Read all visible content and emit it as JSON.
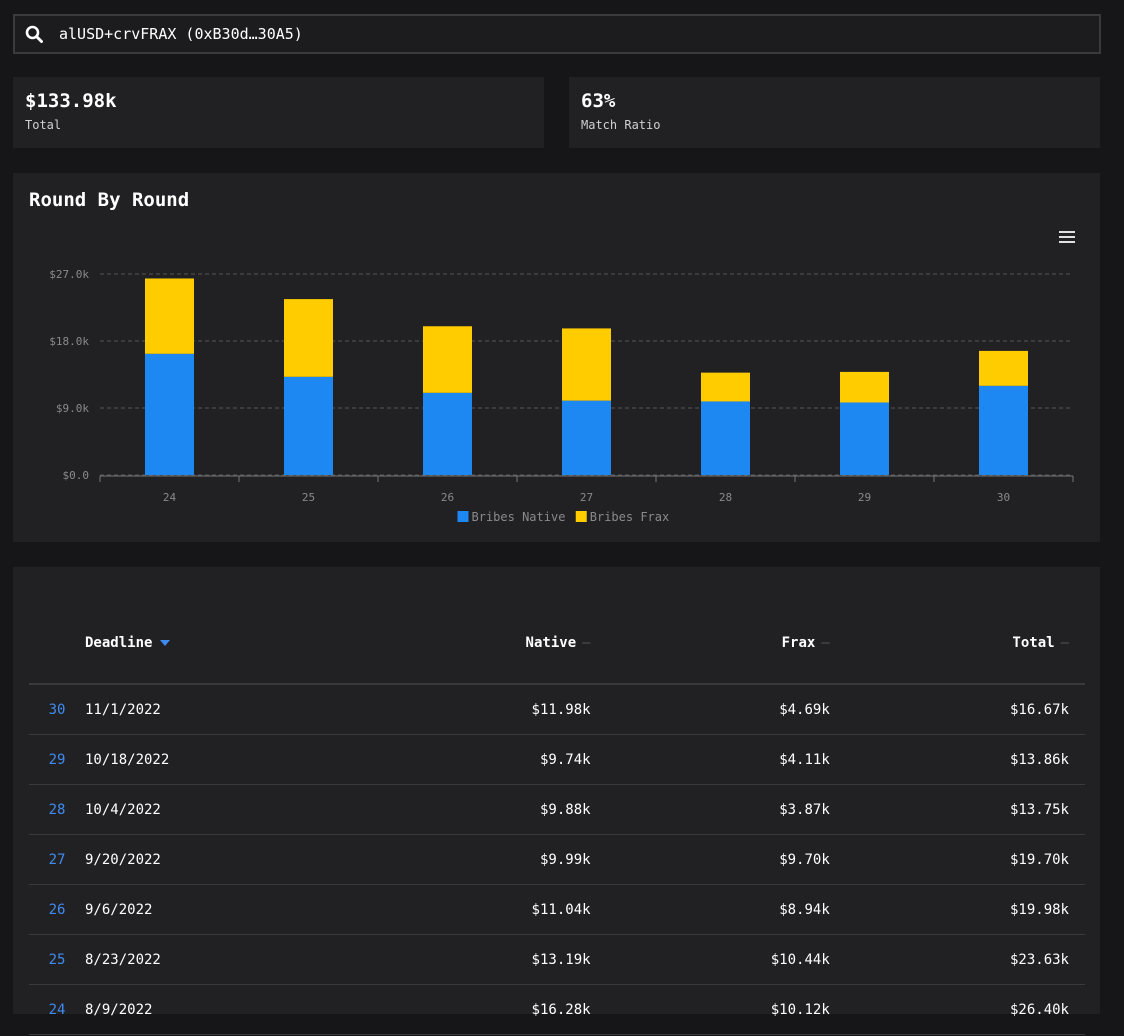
{
  "search": {
    "value": "alUSD+crvFRAX (0xB30d…30A5)"
  },
  "stats": [
    {
      "value": "$133.98k",
      "label": "Total"
    },
    {
      "value": "63%",
      "label": "Match Ratio"
    }
  ],
  "chart_title": "Round By Round",
  "chart_data": {
    "type": "bar",
    "stacked": true,
    "categories": [
      "24",
      "25",
      "26",
      "27",
      "28",
      "29",
      "30"
    ],
    "series": [
      {
        "name": "Bribes Native",
        "color": "#1e88f2",
        "values": [
          16.28,
          13.19,
          11.04,
          9.99,
          9.88,
          9.74,
          11.98
        ]
      },
      {
        "name": "Bribes Frax",
        "color": "#ffcc00",
        "values": [
          10.12,
          10.44,
          8.94,
          9.7,
          3.87,
          4.11,
          4.69
        ]
      }
    ],
    "yticks": [
      {
        "value": 0,
        "label": "$0.0"
      },
      {
        "value": 9,
        "label": "$9.0k"
      },
      {
        "value": 18,
        "label": "$18.0k"
      },
      {
        "value": 27,
        "label": "$27.0k"
      }
    ],
    "ylim": [
      0,
      27
    ],
    "grid": true,
    "legend": "bottom"
  },
  "table": {
    "headers": {
      "deadline": "Deadline",
      "native": "Native",
      "frax": "Frax",
      "total": "Total",
      "sort_dash": "—"
    },
    "rows": [
      {
        "round": "30",
        "deadline": "11/1/2022",
        "native": "$11.98k",
        "frax": "$4.69k",
        "total": "$16.67k"
      },
      {
        "round": "29",
        "deadline": "10/18/2022",
        "native": "$9.74k",
        "frax": "$4.11k",
        "total": "$13.86k"
      },
      {
        "round": "28",
        "deadline": "10/4/2022",
        "native": "$9.88k",
        "frax": "$3.87k",
        "total": "$13.75k"
      },
      {
        "round": "27",
        "deadline": "9/20/2022",
        "native": "$9.99k",
        "frax": "$9.70k",
        "total": "$19.70k"
      },
      {
        "round": "26",
        "deadline": "9/6/2022",
        "native": "$11.04k",
        "frax": "$8.94k",
        "total": "$19.98k"
      },
      {
        "round": "25",
        "deadline": "8/23/2022",
        "native": "$13.19k",
        "frax": "$10.44k",
        "total": "$23.63k"
      },
      {
        "round": "24",
        "deadline": "8/9/2022",
        "native": "$16.28k",
        "frax": "$10.12k",
        "total": "$26.40k"
      }
    ]
  },
  "colors": {
    "accent": "#3f8cf0",
    "native": "#1e88f2",
    "frax": "#ffcc00",
    "card": "#212124",
    "background": "#161618"
  }
}
